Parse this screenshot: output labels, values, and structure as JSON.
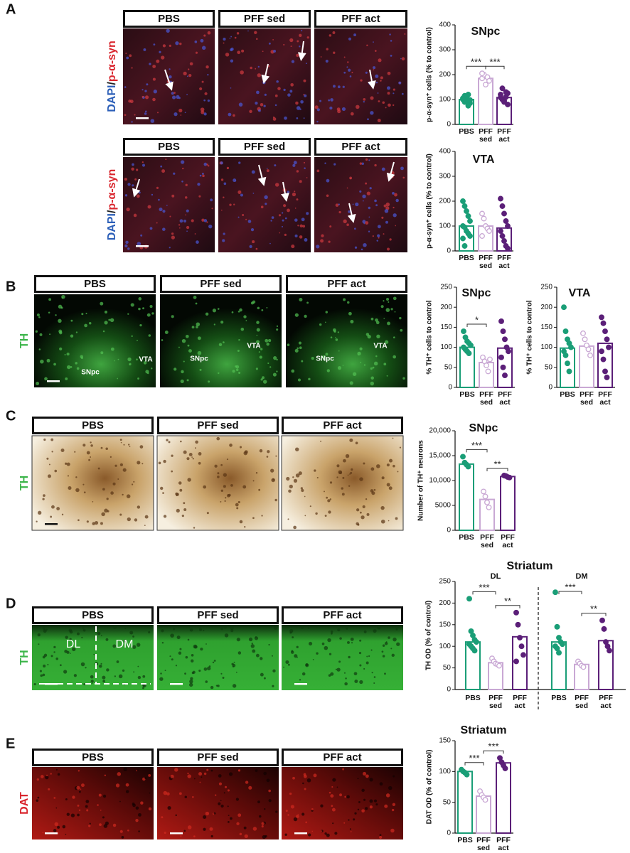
{
  "figure": {
    "panels": [
      {
        "letter": "A",
        "rows": [
          {
            "headers": [
              "PBS",
              "PFF sed",
              "PFF act"
            ],
            "stain": [
              "DAPI",
              "/",
              "p-α-syn"
            ],
            "stain_colors": [
              "#2c5fb8",
              "#222222",
              "#d9262e"
            ]
          },
          {
            "headers": [
              "PBS",
              "PFF sed",
              "PFF act"
            ],
            "stain": [
              "DAPI",
              "/",
              "p-α-syn"
            ],
            "stain_colors": [
              "#2c5fb8",
              "#222222",
              "#d9262e"
            ]
          }
        ]
      },
      {
        "letter": "B",
        "rows": [
          {
            "headers": [
              "PBS",
              "PFF sed",
              "PFF act"
            ],
            "stain": [
              "TH"
            ],
            "stain_colors": [
              "#3cb54a"
            ],
            "regions": [
              [
                "SNpc",
                "VTA"
              ],
              [
                "SNpc",
                "VTA"
              ],
              [
                "SNpc",
                "VTA"
              ]
            ]
          }
        ]
      },
      {
        "letter": "C",
        "rows": [
          {
            "headers": [
              "PBS",
              "PFF sed",
              "PFF act"
            ],
            "stain": [
              "TH"
            ],
            "stain_colors": [
              "#3cb54a"
            ]
          }
        ]
      },
      {
        "letter": "D",
        "rows": [
          {
            "headers": [
              "PBS",
              "PFF sed",
              "PFF act"
            ],
            "stain": [
              "TH"
            ],
            "stain_colors": [
              "#3cb54a"
            ],
            "regions": [
              [
                "DL",
                "DM"
              ]
            ]
          }
        ]
      },
      {
        "letter": "E",
        "rows": [
          {
            "headers": [
              "PBS",
              "PFF sed",
              "PFF act"
            ],
            "stain": [
              "DAT"
            ],
            "stain_colors": [
              "#d9262e"
            ]
          }
        ]
      }
    ]
  },
  "chart_data": [
    {
      "type": "bar",
      "title": "SNpc",
      "y_label": "p-α-syn⁺ cells (% to control)",
      "categories": [
        "PBS",
        "PFF sed",
        "PFF act"
      ],
      "colors": [
        "#1a9e77",
        "#c9a8d4",
        "#5b1f78"
      ],
      "values": [
        100,
        185,
        108
      ],
      "points": [
        [
          100,
          115,
          95,
          120,
          85,
          105,
          90,
          110,
          75,
          98
        ],
        [
          185,
          200,
          160,
          190,
          175,
          205
        ],
        [
          108,
          145,
          95,
          130,
          80,
          120,
          100,
          90,
          110,
          125
        ]
      ],
      "ylim": [
        0,
        400
      ],
      "yticks": [
        0,
        100,
        200,
        300,
        400
      ],
      "annotations": [
        {
          "text": "***",
          "between": [
            "PBS",
            "PFF sed"
          ]
        },
        {
          "text": "***",
          "between": [
            "PFF sed",
            "PFF act"
          ]
        }
      ]
    },
    {
      "type": "bar",
      "title": "VTA",
      "y_label": "p-α-syn⁺ cells (% to control)",
      "categories": [
        "PBS",
        "PFF sed",
        "PFF act"
      ],
      "colors": [
        "#1a9e77",
        "#c9a8d4",
        "#5b1f78"
      ],
      "values": [
        100,
        100,
        92
      ],
      "points": [
        [
          200,
          180,
          160,
          140,
          120,
          100,
          95,
          80,
          70,
          60,
          50,
          20
        ],
        [
          150,
          130,
          100,
          90,
          80,
          60
        ],
        [
          210,
          180,
          150,
          120,
          100,
          80,
          60,
          40,
          20,
          10
        ]
      ],
      "ylim": [
        0,
        400
      ],
      "yticks": [
        0,
        100,
        200,
        300,
        400
      ],
      "annotations": []
    },
    {
      "type": "bar",
      "title": "SNpc",
      "y_label": "% TH⁺ cells to control",
      "categories": [
        "PBS",
        "PFF sed",
        "PFF act"
      ],
      "colors": [
        "#1a9e77",
        "#c9a8d4",
        "#5b1f78"
      ],
      "values": [
        100,
        62,
        98
      ],
      "points": [
        [
          140,
          125,
          115,
          110,
          105,
          100,
          95,
          90,
          85
        ],
        [
          75,
          65,
          55,
          40,
          70
        ],
        [
          165,
          140,
          120,
          100,
          90,
          75,
          50,
          30
        ]
      ],
      "ylim": [
        0,
        250
      ],
      "yticks": [
        0,
        50,
        100,
        150,
        200,
        250
      ],
      "annotations": [
        {
          "text": "*",
          "between": [
            "PBS",
            "PFF sed"
          ]
        }
      ]
    },
    {
      "type": "bar",
      "title": "VTA",
      "y_label": "% TH⁺ cells to control",
      "categories": [
        "PBS",
        "PFF sed",
        "PFF act"
      ],
      "colors": [
        "#1a9e77",
        "#c9a8d4",
        "#5b1f78"
      ],
      "values": [
        98,
        103,
        110
      ],
      "points": [
        [
          200,
          140,
          120,
          110,
          100,
          90,
          80,
          60,
          40
        ],
        [
          135,
          120,
          105,
          95,
          80
        ],
        [
          175,
          160,
          140,
          120,
          100,
          90,
          70,
          40,
          25
        ]
      ],
      "ylim": [
        0,
        250
      ],
      "yticks": [
        0,
        50,
        100,
        150,
        200,
        250
      ],
      "annotations": []
    },
    {
      "type": "bar",
      "title": "SNpc",
      "y_label": "Number of TH⁺ neurons",
      "categories": [
        "PBS",
        "PFF sed",
        "PFF act"
      ],
      "colors": [
        "#1a9e77",
        "#c9a8d4",
        "#5b1f78"
      ],
      "values": [
        13300,
        6200,
        10800
      ],
      "points": [
        [
          14800,
          13600,
          13200,
          12800
        ],
        [
          7800,
          6800,
          5600,
          4600
        ],
        [
          11000,
          10900,
          10700,
          10600
        ]
      ],
      "ylim": [
        0,
        20000
      ],
      "yticks": [
        0,
        5000,
        {
          "value": 10000,
          "label": "10,000"
        },
        {
          "value": 15000,
          "label": "15,000"
        },
        {
          "value": 20000,
          "label": "20,000"
        }
      ],
      "annotations": [
        {
          "text": "***",
          "between": [
            "PBS",
            "PFF sed"
          ]
        },
        {
          "text": "**",
          "between": [
            "PFF sed",
            "PFF act"
          ]
        }
      ]
    },
    {
      "type": "bar",
      "title": "Striatum",
      "y_label": "TH OD (% of control)",
      "categories": [
        "PBS",
        "PFF sed",
        "PFF act"
      ],
      "colors": [
        "#1a9e77",
        "#c9a8d4",
        "#5b1f78"
      ],
      "groups": [
        {
          "name": "DL",
          "values": [
            110,
            62,
            122
          ],
          "points": [
            [
              210,
              135,
              125,
              115,
              110,
              105,
              100,
              95,
              90
            ],
            [
              72,
              65,
              60,
              58,
              55
            ],
            [
              178,
              150,
              120,
              100,
              80,
              65
            ]
          ],
          "annotations": [
            {
              "text": "***",
              "between": [
                "PBS",
                "PFF sed"
              ]
            },
            {
              "text": "**",
              "between": [
                "PFF sed",
                "PFF act"
              ]
            }
          ]
        },
        {
          "name": "DM",
          "values": [
            110,
            58,
            113
          ],
          "points": [
            [
              225,
              145,
              120,
              110,
              105,
              100,
              95,
              85
            ],
            [
              65,
              60,
              55,
              52
            ],
            [
              160,
              140,
              110,
              100,
              90
            ]
          ],
          "annotations": [
            {
              "text": "***",
              "between": [
                "PBS",
                "PFF sed"
              ]
            },
            {
              "text": "**",
              "between": [
                "PFF sed",
                "PFF act"
              ]
            }
          ]
        }
      ],
      "ylim": [
        0,
        250
      ],
      "yticks": [
        0,
        50,
        100,
        150,
        200,
        250
      ]
    },
    {
      "type": "bar",
      "title": "Striatum",
      "y_label": "DAT OD (% of control)",
      "categories": [
        "PBS",
        "PFF sed",
        "PFF act"
      ],
      "colors": [
        "#1a9e77",
        "#c9a8d4",
        "#5b1f78"
      ],
      "values": [
        100,
        60,
        114
      ],
      "points": [
        [
          103,
          100,
          98,
          95
        ],
        [
          68,
          62,
          58,
          54
        ],
        [
          122,
          115,
          110,
          105
        ]
      ],
      "ylim": [
        0,
        150
      ],
      "yticks": [
        0,
        50,
        100,
        150
      ],
      "annotations": [
        {
          "text": "***",
          "between": [
            "PBS",
            "PFF sed"
          ]
        },
        {
          "text": "***",
          "between": [
            "PFF sed",
            "PFF act"
          ]
        }
      ]
    }
  ]
}
